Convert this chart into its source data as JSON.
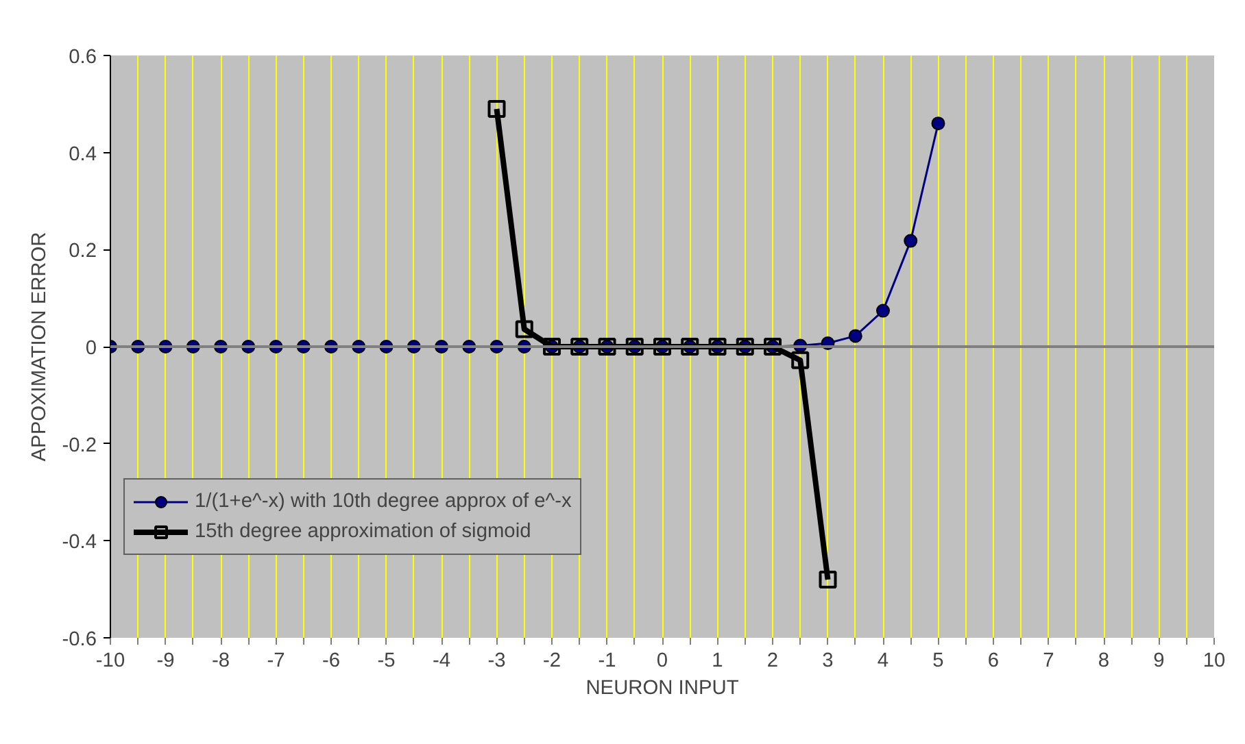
{
  "chart_data": {
    "type": "line",
    "xlabel": "NEURON INPUT",
    "ylabel": "APPOXIMATION ERROR",
    "xlim": [
      -10,
      10
    ],
    "ylim": [
      -0.6,
      0.6
    ],
    "xticks": [
      -10,
      {
        "value": -9.5,
        "label": null
      },
      -9,
      {
        "value": -8.5,
        "label": null
      },
      -8,
      {
        "value": -7.5,
        "label": null
      },
      -7,
      {
        "value": -6.5,
        "label": null
      },
      -6,
      {
        "value": -5.5,
        "label": null
      },
      -5,
      {
        "value": -4.5,
        "label": null
      },
      -4,
      {
        "value": -3.5,
        "label": null
      },
      -3,
      {
        "value": -2.5,
        "label": null
      },
      -2,
      {
        "value": -1.5,
        "label": null
      },
      -1,
      {
        "value": -0.5,
        "label": null
      },
      0,
      {
        "value": 0.5,
        "label": null
      },
      1,
      {
        "value": 1.5,
        "label": null
      },
      2,
      {
        "value": 2.5,
        "label": null
      },
      3,
      {
        "value": 3.5,
        "label": null
      },
      4,
      {
        "value": 4.5,
        "label": null
      },
      5,
      {
        "value": 5.5,
        "label": null
      },
      6,
      {
        "value": 6.5,
        "label": null
      },
      7,
      {
        "value": 7.5,
        "label": null
      },
      8,
      {
        "value": 8.5,
        "label": null
      },
      9,
      {
        "value": 9.5,
        "label": null
      },
      10
    ],
    "yticks": [
      {
        "value": -0.6,
        "label": "-0.6"
      },
      {
        "value": -0.4,
        "label": "-0.4"
      },
      {
        "value": -0.2,
        "label": "-0.2"
      },
      0,
      {
        "value": 0.2,
        "label": "0.2"
      },
      {
        "value": 0.4,
        "label": "0.4"
      },
      {
        "value": 0.6,
        "label": "0.6"
      }
    ],
    "grid": "x",
    "legend": "bottom left",
    "ref_lines": [
      {
        "axis": "y",
        "value": 0,
        "label": null,
        "color": "#808080"
      }
    ],
    "series": [
      {
        "name": "1/(1+e^-x) with 10th degree approx of e^-x",
        "color": "#000080",
        "marker": "circle",
        "x": [
          -10,
          -9.5,
          -9,
          -8.5,
          -8,
          -7.5,
          -7,
          -6.5,
          -6,
          -5.5,
          -5,
          -4.5,
          -4,
          -3.5,
          -3,
          -2.5,
          -2,
          -1.5,
          -1,
          -0.5,
          0,
          0.5,
          1,
          1.5,
          2,
          2.5,
          3,
          3.5,
          4,
          4.5,
          5
        ],
        "values": [
          0,
          0,
          0,
          0,
          0,
          0,
          0,
          0,
          0,
          0,
          0,
          0,
          0,
          0,
          0,
          0,
          0,
          0,
          0,
          0,
          0,
          0,
          0,
          0,
          0,
          0.002,
          0.007,
          0.022,
          0.074,
          0.218,
          0.46
        ]
      },
      {
        "name": "15th degree approximation of sigmoid",
        "color": "#000000",
        "marker": "square",
        "x": [
          -3,
          -2.5,
          -2,
          -1.5,
          -1,
          -0.5,
          0,
          0.5,
          1,
          1.5,
          2,
          2.5,
          3
        ],
        "values": [
          0.49,
          0.036,
          0,
          0,
          0,
          0,
          0,
          0,
          0,
          0,
          0,
          -0.028,
          -0.48
        ]
      }
    ]
  }
}
